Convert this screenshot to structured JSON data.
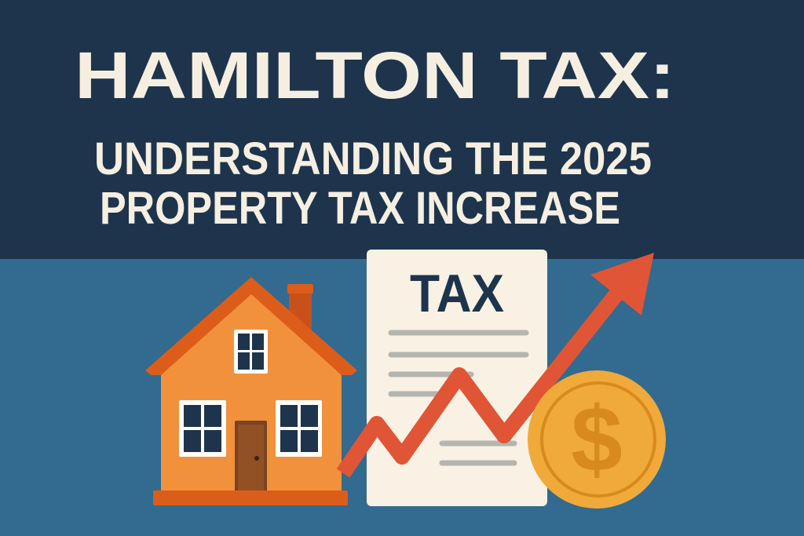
{
  "header": {
    "title": "HAMILTON TAX:",
    "subtitle_line1": "UNDERSTANDING THE 2025",
    "subtitle_line2": "PROPERTY TAX INCREASE"
  },
  "illustration": {
    "document_label": "TAX",
    "coin_symbol": "$",
    "icons": [
      "house-icon",
      "tax-document-icon",
      "rising-arrow-icon",
      "dollar-coin-icon"
    ]
  },
  "colors": {
    "header_bg": "#1d344c",
    "body_bg": "#336a8f",
    "title_text": "#f6efe1",
    "house": "#f2913c",
    "roof": "#dc5d1a",
    "arrow": "#e05535",
    "coin": "#efaa3a"
  }
}
